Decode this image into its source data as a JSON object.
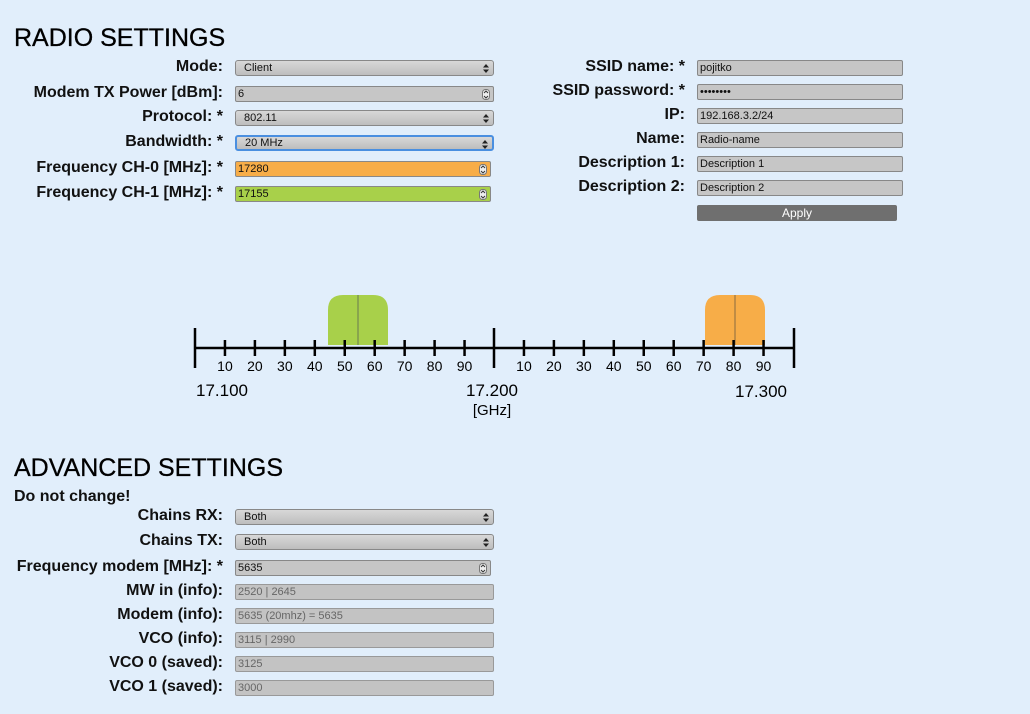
{
  "radio": {
    "title": "RADIO SETTINGS",
    "fields": [
      {
        "label": "Mode:",
        "value": "Client"
      },
      {
        "label": "Modem TX Power [dBm]:",
        "value": "6"
      },
      {
        "label": "Protocol: *",
        "value": "802.11"
      },
      {
        "label": "Bandwidth: *",
        "value": "20 MHz"
      },
      {
        "label": "Frequency CH-0 [MHz]: *",
        "value": "17280"
      },
      {
        "label": "Frequency CH-1 [MHz]: *",
        "value": "17155"
      }
    ]
  },
  "network": {
    "fields": [
      {
        "label": "SSID name: *",
        "value": "pojitko"
      },
      {
        "label": "SSID password: *",
        "value": "••••••••"
      },
      {
        "label": "IP:",
        "value": "192.168.3.2/24"
      },
      {
        "label": "Name:",
        "value": "Radio-name"
      },
      {
        "label": "Description 1:",
        "value": "Description 1"
      },
      {
        "label": "Description 2:",
        "value": "Description 2"
      }
    ],
    "button": "Apply"
  },
  "scale": {
    "low_ticks": [
      "10",
      "20",
      "30",
      "40",
      "50",
      "60",
      "70",
      "80",
      "90"
    ],
    "high_ticks": [
      "10",
      "20",
      "30",
      "40",
      "50",
      "60",
      "70",
      "80",
      "90"
    ],
    "labels": [
      "17.100",
      "17.200",
      "17.300"
    ],
    "unit": "[GHz]"
  },
  "advanced": {
    "title": "ADVANCED SETTINGS",
    "note": "Do not change!",
    "fields": [
      {
        "label": "Chains RX:",
        "value": "Both"
      },
      {
        "label": "Chains TX:",
        "value": "Both"
      },
      {
        "label": "Frequency modem [MHz]: *",
        "value": "5635"
      },
      {
        "label": "MW in (info):",
        "value": "2520 | 2645"
      },
      {
        "label": "Modem (info):",
        "value": "5635 (20mhz) = 5635"
      },
      {
        "label": "VCO (info):",
        "value": "3115 | 2990"
      },
      {
        "label": "VCO 0 (saved):",
        "value": "3125"
      },
      {
        "label": "VCO 1 (saved):",
        "value": "3000"
      }
    ]
  }
}
